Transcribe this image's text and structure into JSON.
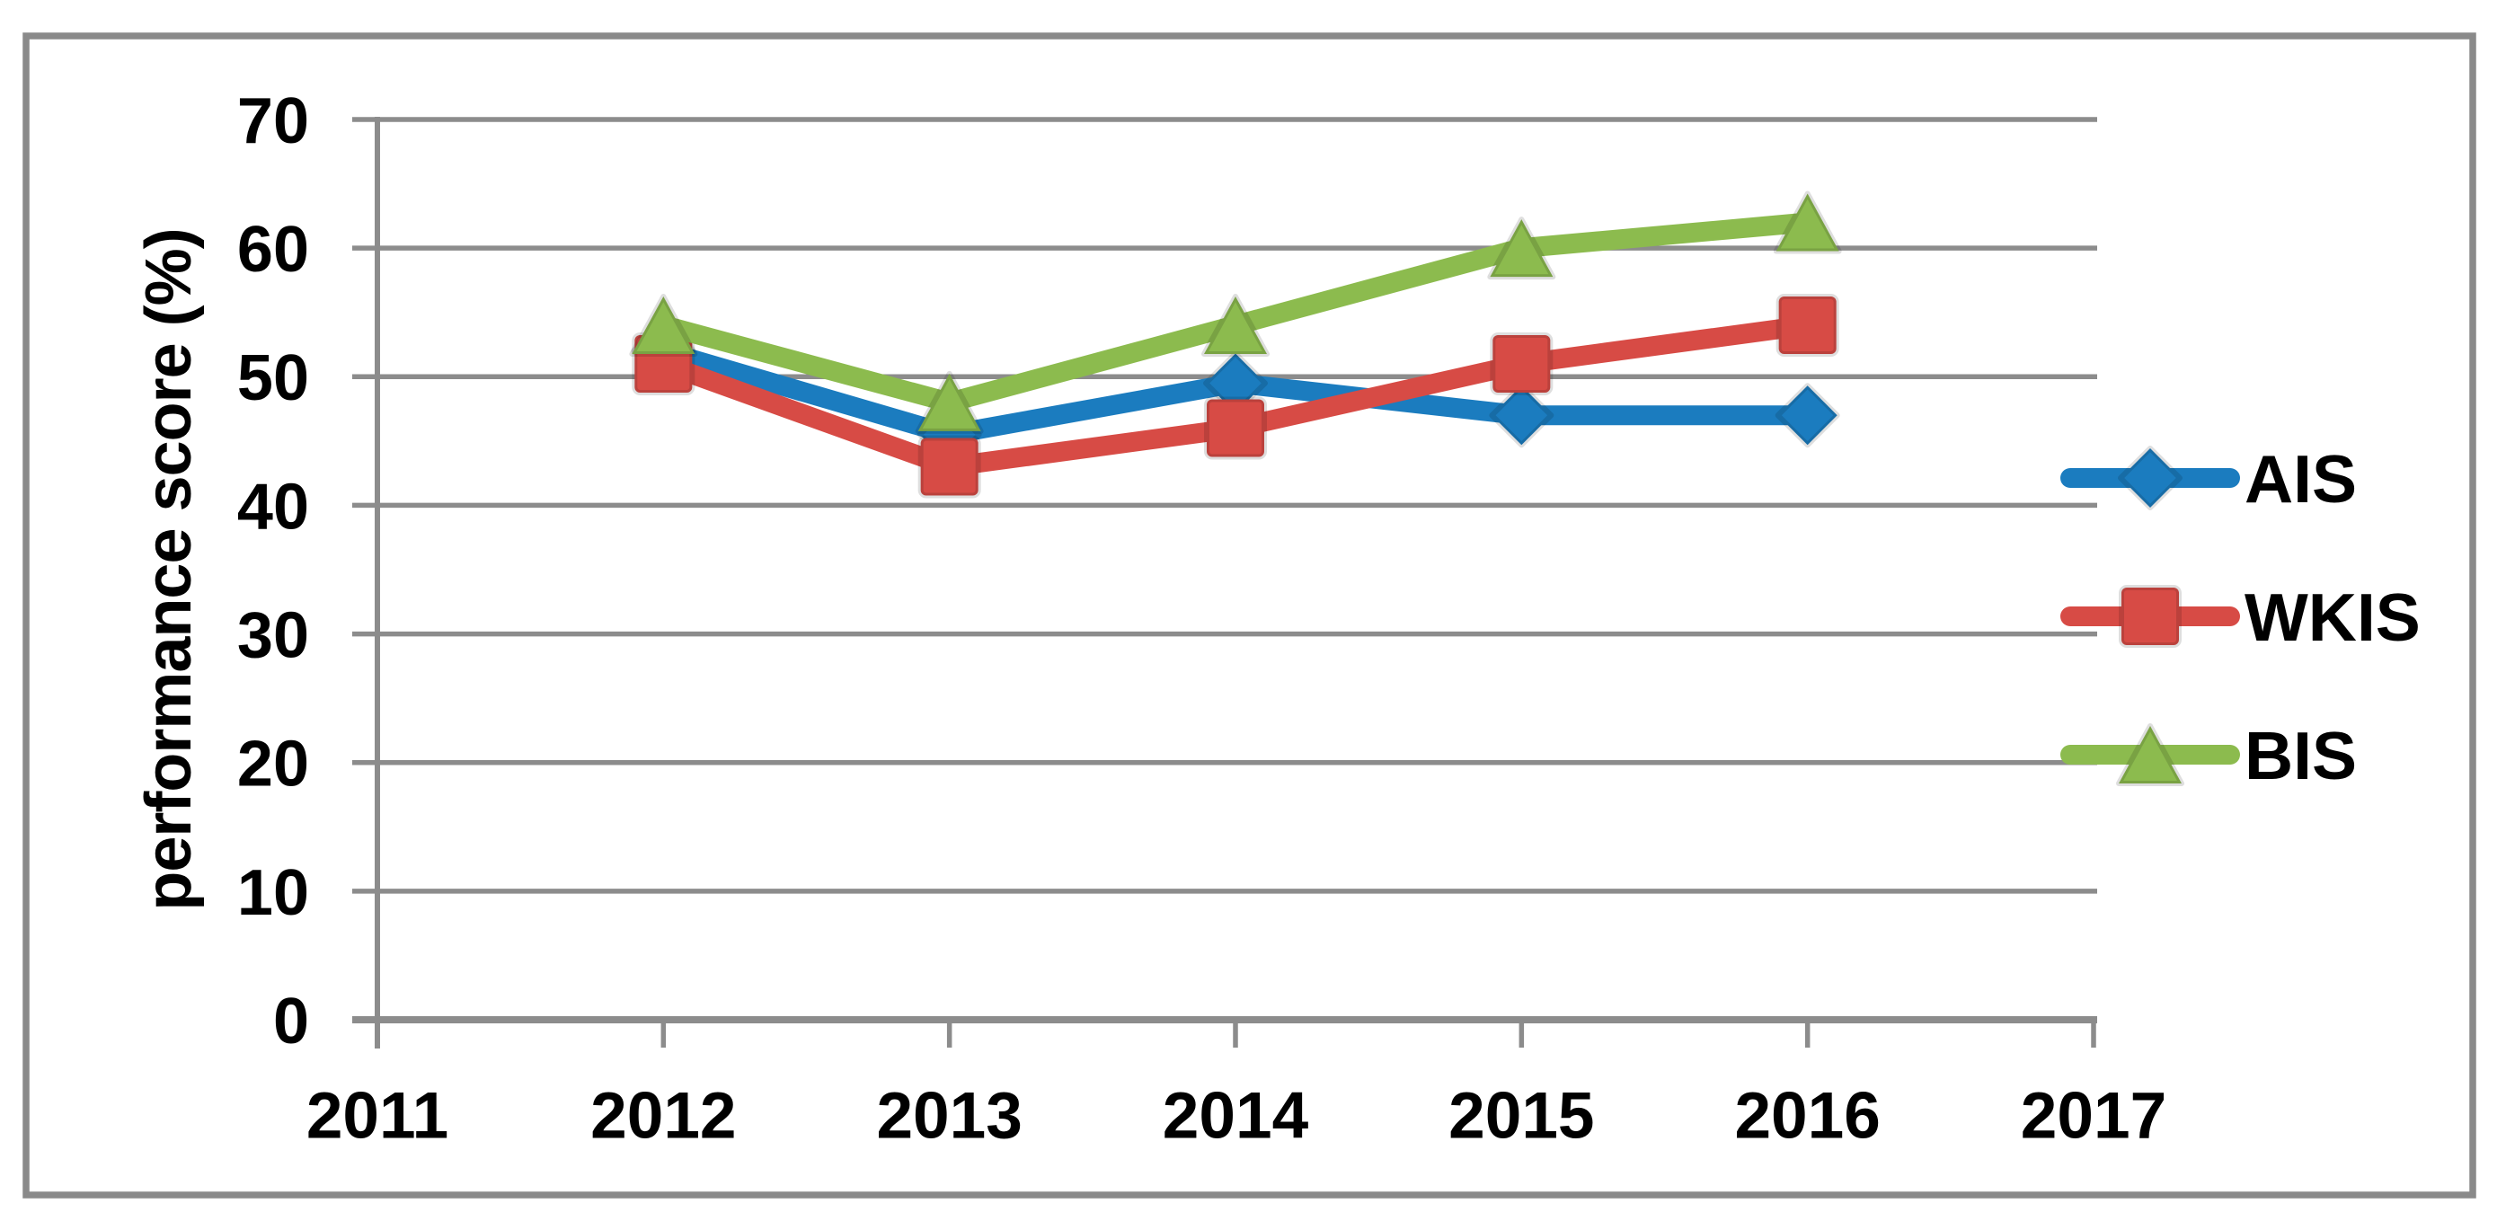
{
  "chart_data": {
    "type": "line",
    "title": "",
    "xlabel": "",
    "ylabel": "performance score (%)",
    "x": [
      2012,
      2013,
      2014,
      2015,
      2016
    ],
    "x_tick_labels": [
      "2011",
      "2012",
      "2013",
      "2014",
      "2015",
      "2016",
      "2017"
    ],
    "x_range": [
      2011,
      2017
    ],
    "y_tick_labels": [
      "0",
      "10",
      "20",
      "30",
      "40",
      "50",
      "60",
      "70"
    ],
    "ylim": [
      0,
      70
    ],
    "y_tick_step": 10,
    "grid": "horizontal-only",
    "legend_position": "right-middle",
    "series": [
      {
        "name": "AIS",
        "marker": "diamond",
        "color": "#1B7CBF",
        "values": [
          52,
          45.5,
          49.5,
          47,
          47
        ]
      },
      {
        "name": "WKIS",
        "marker": "square",
        "color": "#D74B45",
        "values": [
          51,
          43,
          46,
          51,
          54
        ]
      },
      {
        "name": "BIS",
        "marker": "triangle",
        "color": "#8CBB4E",
        "values": [
          54,
          48,
          54,
          60,
          62
        ]
      }
    ]
  },
  "style_colors": {
    "grid": "#8C8C8C",
    "axis": "#8C8C8C",
    "frame_border": "#8A8A8A",
    "text": "#000000",
    "background": "#FFFFFF"
  }
}
